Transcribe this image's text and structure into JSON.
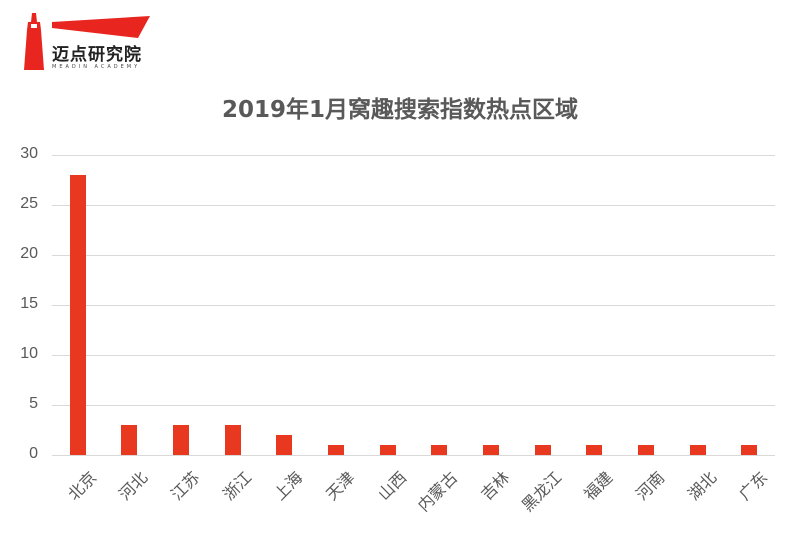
{
  "logo": {
    "name": "迈点研究院",
    "subtitle": "MEADIN ACADEMY",
    "color": "#e8261f"
  },
  "chart_data": {
    "type": "bar",
    "title": "2019年1月窝趣搜索指数热点区域",
    "categories": [
      "北京",
      "河北",
      "江苏",
      "浙江",
      "上海",
      "天津",
      "山西",
      "内蒙古",
      "吉林",
      "黑龙江",
      "福建",
      "河南",
      "湖北",
      "广东"
    ],
    "values": [
      28,
      3,
      3,
      3,
      2,
      1,
      1,
      1,
      1,
      1,
      1,
      1,
      1,
      1
    ],
    "xlabel": "",
    "ylabel": "",
    "ylim": [
      0,
      30
    ],
    "yticks": [
      0,
      5,
      10,
      15,
      20,
      25,
      30
    ],
    "grid": true,
    "legend": "none",
    "bar_color": "#e8381f"
  }
}
